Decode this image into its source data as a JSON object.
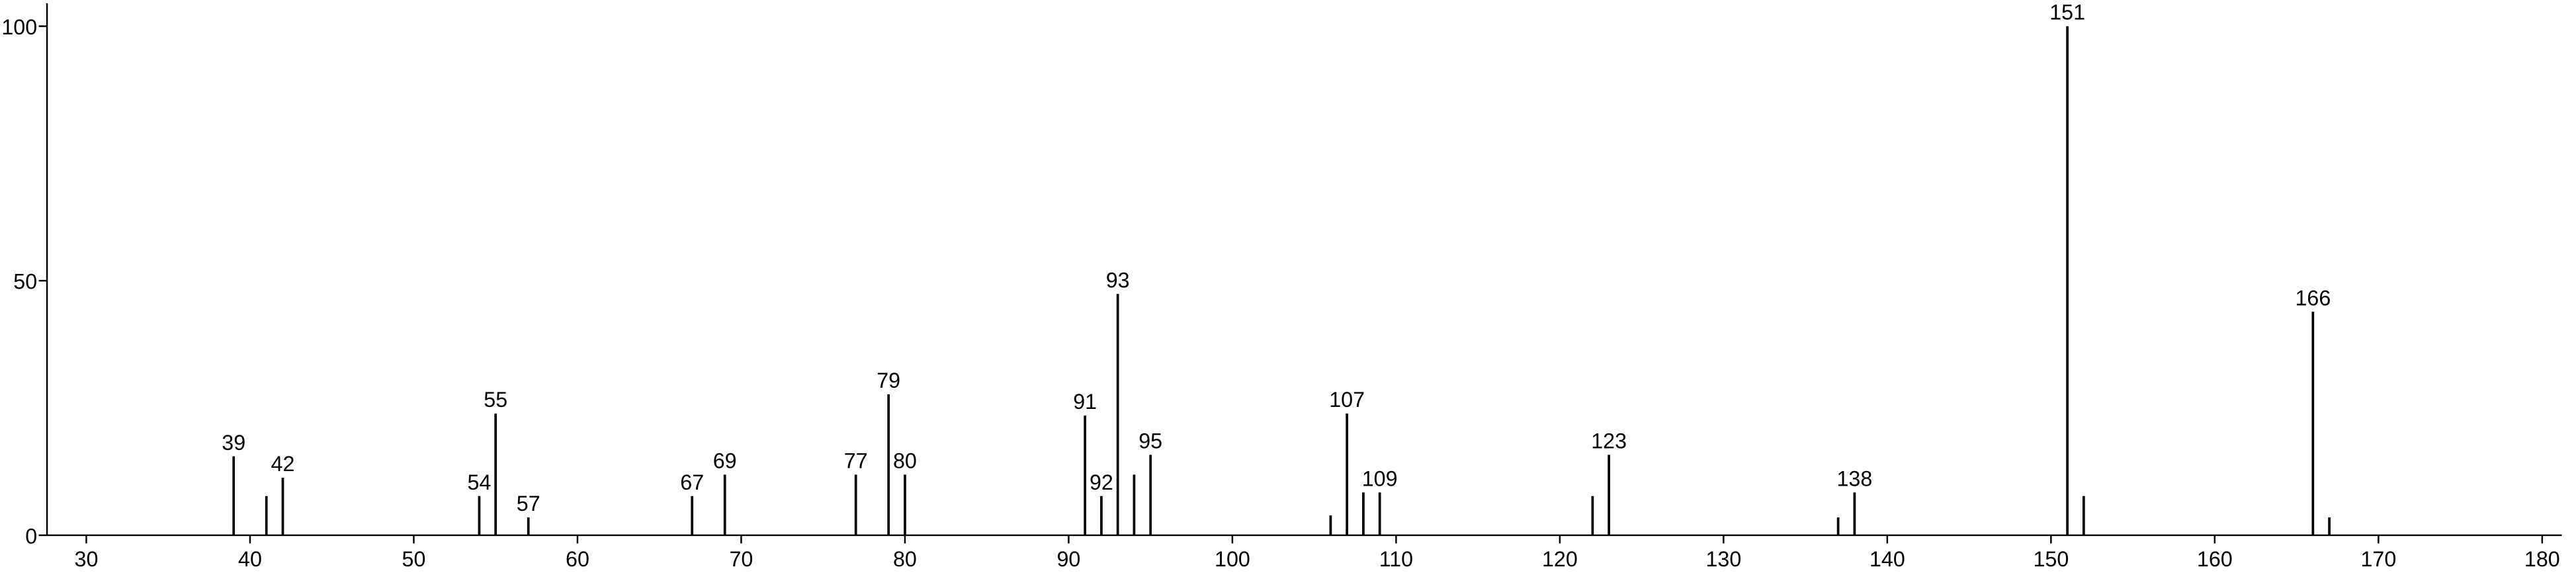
{
  "chart_data": {
    "type": "stem",
    "color": "#000000",
    "x": [
      39,
      41,
      42,
      54,
      55,
      57,
      67,
      69,
      77,
      79,
      80,
      91,
      92,
      93,
      94,
      95,
      106,
      107,
      108,
      109,
      122,
      123,
      137,
      138,
      151,
      152,
      166,
      167
    ],
    "values": [
      15.5,
      7.7,
      11.3,
      7.7,
      23.9,
      3.5,
      7.7,
      11.9,
      11.9,
      27.7,
      11.9,
      23.5,
      7.7,
      47.4,
      11.9,
      15.8,
      3.9,
      23.9,
      8.4,
      8.4,
      7.7,
      15.8,
      3.5,
      8.4,
      100,
      7.7,
      43.9,
      3.5
    ],
    "peak_labels": [
      "39",
      null,
      "42",
      "54",
      "55",
      "57",
      "67",
      "69",
      "77",
      "79",
      "80",
      "91",
      "92",
      "93",
      null,
      "95",
      null,
      "107",
      null,
      "109",
      null,
      "123",
      null,
      "138",
      "151",
      null,
      "166",
      null
    ],
    "xlim": [
      27.6,
      181.2
    ],
    "ylim": [
      0,
      104.5
    ],
    "xticks": [
      30,
      40,
      50,
      60,
      70,
      80,
      90,
      100,
      110,
      120,
      130,
      140,
      150,
      160,
      170,
      180
    ],
    "yticks": [
      0,
      50,
      100
    ]
  }
}
